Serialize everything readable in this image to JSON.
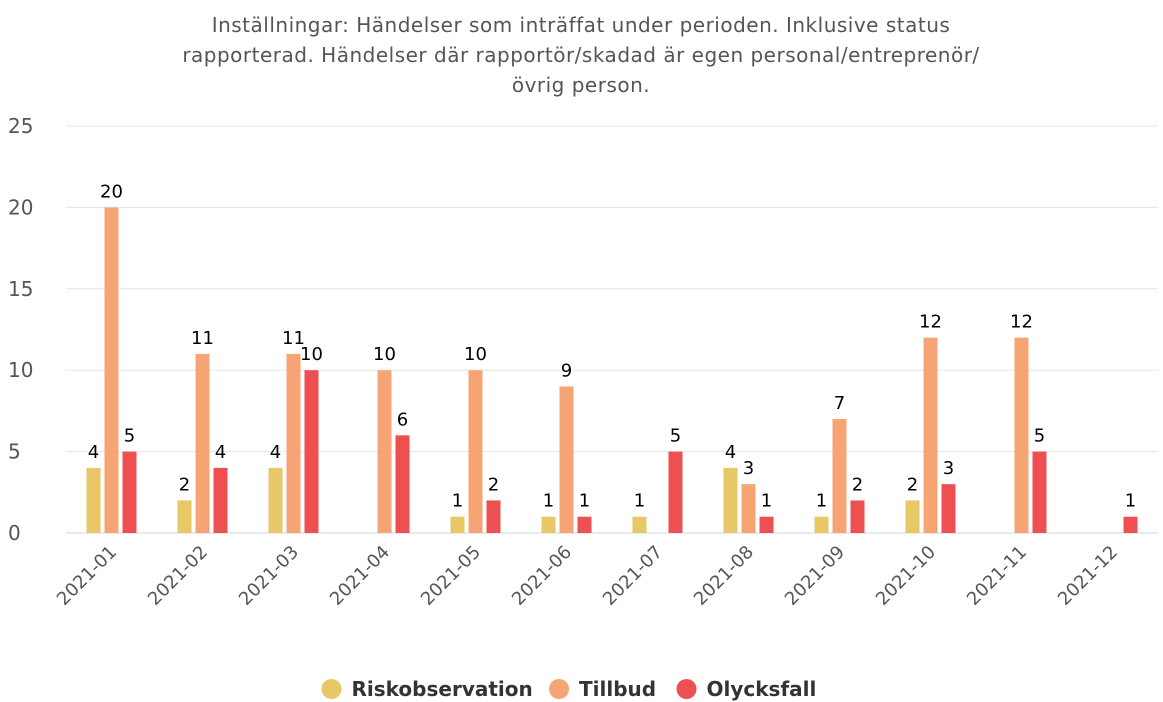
{
  "chart_data": {
    "type": "bar",
    "title": "Inställningar: Händelser som inträffat under perioden. Inklusive status rapporterad. Händelser där rapportör/skadad är egen personal/entreprenör/övrig person.",
    "categories": [
      "2021-01",
      "2021-02",
      "2021-03",
      "2021-04",
      "2021-05",
      "2021-06",
      "2021-07",
      "2021-08",
      "2021-09",
      "2021-10",
      "2021-11",
      "2021-12"
    ],
    "series": [
      {
        "name": "Riskobservation",
        "color": "#e8c766",
        "values": [
          4,
          2,
          4,
          null,
          1,
          1,
          1,
          4,
          1,
          2,
          null,
          null
        ]
      },
      {
        "name": "Tillbud",
        "color": "#f7a474",
        "values": [
          20,
          11,
          11,
          10,
          10,
          9,
          null,
          3,
          7,
          12,
          12,
          null
        ]
      },
      {
        "name": "Olycksfall",
        "color": "#ee4f51",
        "values": [
          5,
          4,
          10,
          6,
          2,
          1,
          5,
          1,
          2,
          3,
          5,
          1
        ]
      }
    ],
    "ylim": [
      0,
      25
    ],
    "yticks": [
      0,
      5,
      10,
      15,
      20,
      25
    ],
    "grid": true,
    "legend": "bottom"
  }
}
